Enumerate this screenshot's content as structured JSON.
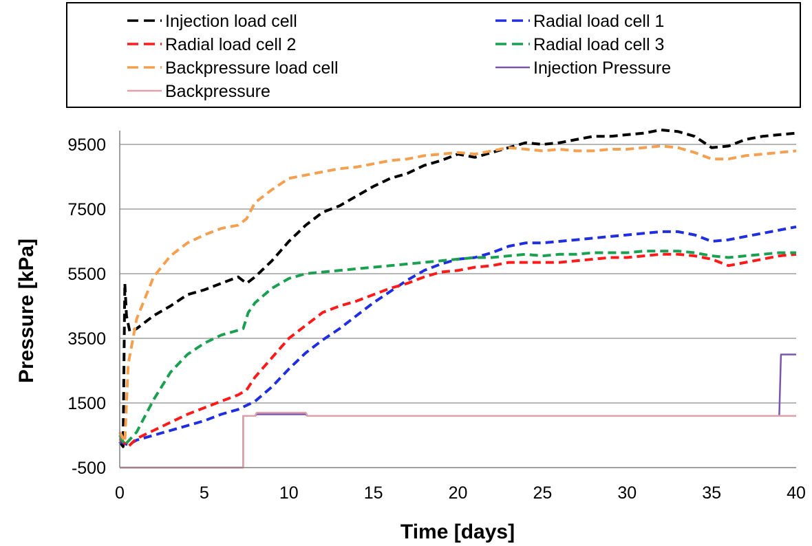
{
  "chart_data": {
    "type": "line",
    "title": "",
    "xlabel": "Time [days]",
    "ylabel": "Pressure [kPa]",
    "xlim": [
      0,
      40
    ],
    "ylim": [
      -500,
      10500
    ],
    "xticks": [
      0,
      5,
      10,
      15,
      20,
      25,
      30,
      35,
      40
    ],
    "yticks": [
      -500,
      1500,
      3500,
      5500,
      7500,
      9500
    ],
    "grid": "horizontal",
    "legend_position": "top",
    "series": [
      {
        "name": "Injection load cell",
        "color": "#000000",
        "style": "dashed",
        "points": [
          [
            0,
            300
          ],
          [
            0.2,
            150
          ],
          [
            0.3,
            5200
          ],
          [
            0.4,
            4200
          ],
          [
            0.6,
            3700
          ],
          [
            1,
            3800
          ],
          [
            2,
            4200
          ],
          [
            3,
            4500
          ],
          [
            4,
            4850
          ],
          [
            5,
            5000
          ],
          [
            6,
            5200
          ],
          [
            7,
            5400
          ],
          [
            7.5,
            5200
          ],
          [
            8,
            5400
          ],
          [
            9,
            5900
          ],
          [
            10,
            6500
          ],
          [
            11,
            7000
          ],
          [
            12,
            7400
          ],
          [
            13,
            7600
          ],
          [
            14,
            7900
          ],
          [
            15,
            8200
          ],
          [
            16,
            8450
          ],
          [
            17,
            8600
          ],
          [
            18,
            8850
          ],
          [
            19,
            9000
          ],
          [
            20,
            9200
          ],
          [
            21,
            9100
          ],
          [
            22,
            9250
          ],
          [
            23,
            9400
          ],
          [
            24,
            9550
          ],
          [
            25,
            9500
          ],
          [
            26,
            9550
          ],
          [
            27,
            9650
          ],
          [
            28,
            9750
          ],
          [
            29,
            9750
          ],
          [
            30,
            9800
          ],
          [
            31,
            9850
          ],
          [
            32,
            9950
          ],
          [
            33,
            9900
          ],
          [
            34,
            9750
          ],
          [
            35,
            9400
          ],
          [
            36,
            9450
          ],
          [
            37,
            9650
          ],
          [
            38,
            9750
          ],
          [
            39,
            9800
          ],
          [
            40,
            9850
          ]
        ]
      },
      {
        "name": "Radial load cell 1",
        "color": "#1f2fe0",
        "style": "dashed",
        "points": [
          [
            0,
            300
          ],
          [
            0.5,
            200
          ],
          [
            1,
            350
          ],
          [
            2,
            500
          ],
          [
            3,
            650
          ],
          [
            4,
            800
          ],
          [
            5,
            950
          ],
          [
            6,
            1150
          ],
          [
            7,
            1300
          ],
          [
            8,
            1550
          ],
          [
            9,
            2000
          ],
          [
            10,
            2550
          ],
          [
            11,
            3050
          ],
          [
            12,
            3450
          ],
          [
            13,
            3800
          ],
          [
            14,
            4200
          ],
          [
            15,
            4600
          ],
          [
            16,
            4950
          ],
          [
            17,
            5300
          ],
          [
            18,
            5600
          ],
          [
            19,
            5800
          ],
          [
            20,
            5950
          ],
          [
            21,
            6000
          ],
          [
            22,
            6150
          ],
          [
            23,
            6350
          ],
          [
            24,
            6450
          ],
          [
            25,
            6450
          ],
          [
            26,
            6500
          ],
          [
            27,
            6550
          ],
          [
            28,
            6600
          ],
          [
            29,
            6650
          ],
          [
            30,
            6700
          ],
          [
            31,
            6750
          ],
          [
            32,
            6800
          ],
          [
            33,
            6800
          ],
          [
            34,
            6700
          ],
          [
            35,
            6500
          ],
          [
            36,
            6550
          ],
          [
            37,
            6650
          ],
          [
            38,
            6750
          ],
          [
            39,
            6850
          ],
          [
            40,
            6950
          ]
        ]
      },
      {
        "name": "Radial load cell 2",
        "color": "#ff1a1a",
        "style": "dashed",
        "points": [
          [
            0,
            400
          ],
          [
            0.5,
            150
          ],
          [
            1,
            400
          ],
          [
            2,
            650
          ],
          [
            3,
            900
          ],
          [
            4,
            1150
          ],
          [
            5,
            1350
          ],
          [
            6,
            1550
          ],
          [
            7,
            1750
          ],
          [
            7.5,
            1900
          ],
          [
            8,
            2300
          ],
          [
            9,
            2900
          ],
          [
            10,
            3500
          ],
          [
            11,
            3900
          ],
          [
            12,
            4300
          ],
          [
            13,
            4500
          ],
          [
            14,
            4650
          ],
          [
            15,
            4850
          ],
          [
            16,
            5050
          ],
          [
            17,
            5200
          ],
          [
            18,
            5400
          ],
          [
            19,
            5550
          ],
          [
            20,
            5600
          ],
          [
            21,
            5700
          ],
          [
            22,
            5750
          ],
          [
            23,
            5850
          ],
          [
            24,
            5850
          ],
          [
            25,
            5850
          ],
          [
            26,
            5850
          ],
          [
            27,
            5900
          ],
          [
            28,
            5950
          ],
          [
            29,
            6000
          ],
          [
            30,
            6000
          ],
          [
            31,
            6050
          ],
          [
            32,
            6100
          ],
          [
            33,
            6100
          ],
          [
            34,
            6050
          ],
          [
            35,
            5950
          ],
          [
            36,
            5750
          ],
          [
            37,
            5850
          ],
          [
            38,
            5950
          ],
          [
            39,
            6050
          ],
          [
            40,
            6100
          ]
        ]
      },
      {
        "name": "Radial load cell 3",
        "color": "#1aa050",
        "style": "dashed",
        "points": [
          [
            0,
            500
          ],
          [
            0.3,
            200
          ],
          [
            1,
            600
          ],
          [
            2,
            1600
          ],
          [
            3,
            2450
          ],
          [
            4,
            3000
          ],
          [
            5,
            3350
          ],
          [
            6,
            3600
          ],
          [
            7,
            3750
          ],
          [
            7.3,
            3800
          ],
          [
            7.6,
            4300
          ],
          [
            8,
            4600
          ],
          [
            9,
            5050
          ],
          [
            10,
            5350
          ],
          [
            11,
            5500
          ],
          [
            12,
            5550
          ],
          [
            13,
            5600
          ],
          [
            14,
            5650
          ],
          [
            15,
            5700
          ],
          [
            16,
            5750
          ],
          [
            17,
            5800
          ],
          [
            18,
            5850
          ],
          [
            19,
            5900
          ],
          [
            20,
            5950
          ],
          [
            21,
            6000
          ],
          [
            22,
            6000
          ],
          [
            23,
            6050
          ],
          [
            24,
            6100
          ],
          [
            25,
            6050
          ],
          [
            26,
            6100
          ],
          [
            27,
            6100
          ],
          [
            28,
            6150
          ],
          [
            29,
            6150
          ],
          [
            30,
            6150
          ],
          [
            31,
            6200
          ],
          [
            32,
            6200
          ],
          [
            33,
            6200
          ],
          [
            34,
            6150
          ],
          [
            35,
            6050
          ],
          [
            36,
            6000
          ],
          [
            37,
            6050
          ],
          [
            38,
            6100
          ],
          [
            39,
            6150
          ],
          [
            40,
            6150
          ]
        ]
      },
      {
        "name": "Backpressure load cell",
        "color": "#f5a050",
        "style": "dashed",
        "points": [
          [
            0,
            600
          ],
          [
            0.3,
            300
          ],
          [
            0.5,
            2700
          ],
          [
            1,
            4100
          ],
          [
            2,
            5400
          ],
          [
            3,
            6050
          ],
          [
            4,
            6450
          ],
          [
            5,
            6700
          ],
          [
            6,
            6900
          ],
          [
            7,
            7000
          ],
          [
            7.5,
            7200
          ],
          [
            8,
            7700
          ],
          [
            9,
            8100
          ],
          [
            10,
            8450
          ],
          [
            11,
            8550
          ],
          [
            12,
            8650
          ],
          [
            13,
            8750
          ],
          [
            14,
            8800
          ],
          [
            15,
            8900
          ],
          [
            16,
            9000
          ],
          [
            17,
            9050
          ],
          [
            18,
            9150
          ],
          [
            19,
            9200
          ],
          [
            20,
            9250
          ],
          [
            21,
            9200
          ],
          [
            22,
            9300
          ],
          [
            23,
            9400
          ],
          [
            24,
            9350
          ],
          [
            25,
            9300
          ],
          [
            26,
            9350
          ],
          [
            27,
            9300
          ],
          [
            28,
            9300
          ],
          [
            29,
            9350
          ],
          [
            30,
            9350
          ],
          [
            31,
            9400
          ],
          [
            32,
            9450
          ],
          [
            33,
            9400
          ],
          [
            34,
            9250
          ],
          [
            35,
            9050
          ],
          [
            36,
            9050
          ],
          [
            37,
            9150
          ],
          [
            38,
            9200
          ],
          [
            39,
            9250
          ],
          [
            40,
            9300
          ]
        ]
      },
      {
        "name": "Injection Pressure",
        "color": "#7a55b0",
        "style": "solid",
        "points": [
          [
            0,
            -500
          ],
          [
            7.3,
            -500
          ],
          [
            7.3,
            1100
          ],
          [
            8,
            1100
          ],
          [
            8.1,
            1150
          ],
          [
            11,
            1150
          ],
          [
            11.1,
            1100
          ],
          [
            39,
            1100
          ],
          [
            39.1,
            3000
          ],
          [
            40,
            3000
          ]
        ]
      },
      {
        "name": "Backpressure",
        "color": "#e0a0a8",
        "style": "solid",
        "points": [
          [
            0,
            -500
          ],
          [
            7.3,
            -500
          ],
          [
            7.3,
            1100
          ],
          [
            8,
            1100
          ],
          [
            8.1,
            1200
          ],
          [
            11,
            1200
          ],
          [
            11.1,
            1100
          ],
          [
            40,
            1100
          ]
        ]
      }
    ]
  }
}
